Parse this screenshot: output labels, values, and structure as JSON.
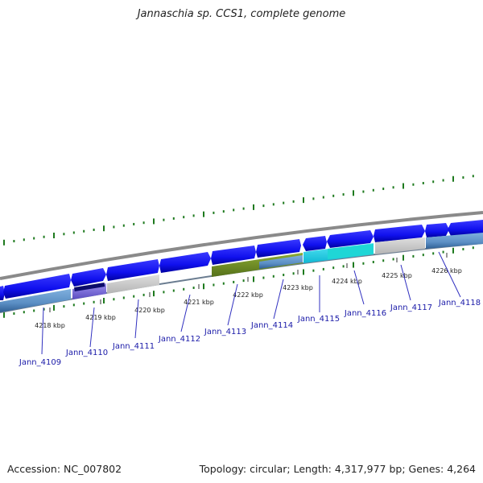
{
  "title": "Jannaschia sp. CCS1, complete genome",
  "footer": {
    "accession": "Accession: NC_007802",
    "summary": "Topology: circular; Length: 4,317,977 bp; Genes: 4,264"
  },
  "colors": {
    "forward_cds": "#1010ee",
    "forward_cds_dark": "#0000a0",
    "reverse_cds": "#5b8ec4",
    "pseudogene": "#c8c8c8",
    "highlight_cyan": "#22d0e8",
    "highlight_green": "#6f8f1e",
    "highlight_purple": "#7a6ad8",
    "backbone": "#8a8a8a",
    "gc_ticks": "#1e7a1e",
    "label_text": "#1a1aa8"
  },
  "kbp_ticks": [
    {
      "label": "4218 kbp"
    },
    {
      "label": "4219 kbp"
    },
    {
      "label": "4220 kbp"
    },
    {
      "label": "4221 kbp"
    },
    {
      "label": "4222 kbp"
    },
    {
      "label": "4223 kbp"
    },
    {
      "label": "4224 kbp"
    },
    {
      "label": "4225 kbp"
    },
    {
      "label": "4226 kbp"
    }
  ],
  "gene_labels": [
    {
      "name": "Jann_4109"
    },
    {
      "name": "Jann_4110"
    },
    {
      "name": "Jann_4111"
    },
    {
      "name": "Jann_4112"
    },
    {
      "name": "Jann_4113"
    },
    {
      "name": "Jann_4114"
    },
    {
      "name": "Jann_4115"
    },
    {
      "name": "Jann_4116"
    },
    {
      "name": "Jann_4117"
    },
    {
      "name": "Jann_4118"
    }
  ]
}
